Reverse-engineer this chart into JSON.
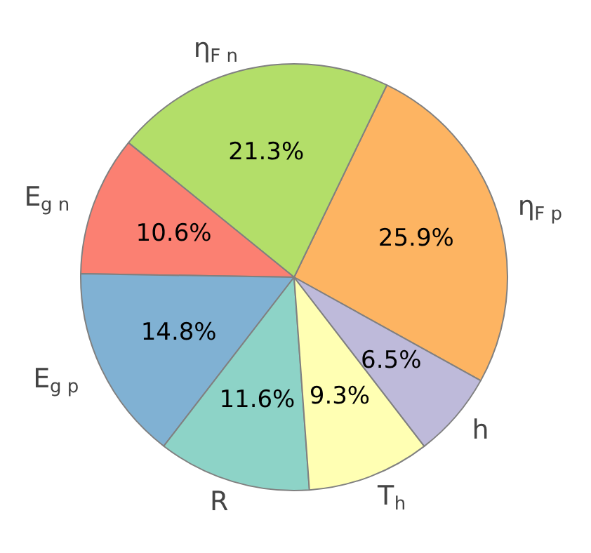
{
  "chart_data": {
    "type": "pie",
    "categories": [
      "η$_{F p}$",
      "η$_{F n}$",
      "E$_{g n}$",
      "E$_{g p}$",
      "R",
      "T$_{h}$",
      "h"
    ],
    "values": [
      25.9,
      21.3,
      10.6,
      14.8,
      11.6,
      9.3,
      6.5
    ],
    "value_labels": [
      "25.9%",
      "21.3%",
      "10.6%",
      "14.8%",
      "11.6%",
      "9.3%",
      "6.5%"
    ],
    "colors": [
      "#fdb462",
      "#b3de69",
      "#fb8072",
      "#80b1d3",
      "#8dd3c7",
      "#ffffb3",
      "#bebada"
    ]
  }
}
